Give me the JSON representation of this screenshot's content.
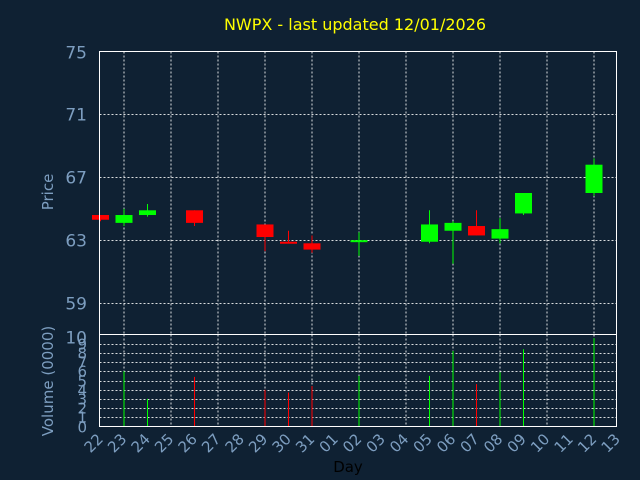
{
  "chart_data": {
    "type": "candlestick",
    "title": "NWPX - last updated 12/01/2026",
    "price_axis": {
      "label": "Price",
      "ylim": [
        57,
        75
      ],
      "ticks": [
        59,
        63,
        67,
        71,
        75
      ]
    },
    "volume_axis": {
      "label": "Volume (0000)",
      "ylim": [
        0,
        10
      ],
      "ticks": [
        0,
        1,
        2,
        3,
        4,
        5,
        6,
        7,
        8,
        9,
        10
      ]
    },
    "xlabel": "Day",
    "categories": [
      "22",
      "23",
      "24",
      "25",
      "26",
      "27",
      "28",
      "29",
      "30",
      "31",
      "01",
      "02",
      "03",
      "04",
      "05",
      "06",
      "07",
      "08",
      "09",
      "10",
      "11",
      "12",
      "13"
    ],
    "candles": [
      {
        "day": "22",
        "open": 64.6,
        "high": 64.6,
        "low": 64.2,
        "close": 64.3
      },
      {
        "day": "23",
        "open": 64.1,
        "high": 65.0,
        "low": 63.9,
        "close": 64.6
      },
      {
        "day": "24",
        "open": 64.6,
        "high": 65.3,
        "low": 64.5,
        "close": 64.9
      },
      {
        "day": "26",
        "open": 64.9,
        "high": 64.9,
        "low": 63.9,
        "close": 64.1
      },
      {
        "day": "29",
        "open": 64.0,
        "high": 64.0,
        "low": 62.3,
        "close": 63.2
      },
      {
        "day": "30",
        "open": 62.9,
        "high": 63.6,
        "low": 62.8,
        "close": 62.8
      },
      {
        "day": "31",
        "open": 62.8,
        "high": 63.3,
        "low": 62.2,
        "close": 62.4
      },
      {
        "day": "02",
        "open": 62.9,
        "high": 63.5,
        "low": 62.0,
        "close": 63.0
      },
      {
        "day": "05",
        "open": 62.9,
        "high": 64.9,
        "low": 62.8,
        "close": 64.0
      },
      {
        "day": "06",
        "open": 63.6,
        "high": 64.2,
        "low": 61.5,
        "close": 64.1
      },
      {
        "day": "07",
        "open": 63.9,
        "high": 64.9,
        "low": 63.3,
        "close": 63.3
      },
      {
        "day": "08",
        "open": 63.1,
        "high": 64.4,
        "low": 62.8,
        "close": 63.7
      },
      {
        "day": "09",
        "open": 64.7,
        "high": 66.0,
        "low": 64.6,
        "close": 66.0
      },
      {
        "day": "12",
        "open": 66.0,
        "high": 68.2,
        "low": 65.8,
        "close": 67.8
      }
    ],
    "volume": [
      {
        "day": "22",
        "value": 0.0
      },
      {
        "day": "23",
        "value": 6.0
      },
      {
        "day": "24",
        "value": 3.0
      },
      {
        "day": "26",
        "value": 5.4
      },
      {
        "day": "29",
        "value": 4.0
      },
      {
        "day": "30",
        "value": 3.7
      },
      {
        "day": "31",
        "value": 4.4
      },
      {
        "day": "02",
        "value": 5.5
      },
      {
        "day": "05",
        "value": 5.5
      },
      {
        "day": "06",
        "value": 8.2
      },
      {
        "day": "07",
        "value": 4.6
      },
      {
        "day": "08",
        "value": 5.9
      },
      {
        "day": "09",
        "value": 8.4
      },
      {
        "day": "12",
        "value": 9.6
      }
    ],
    "colors": {
      "background": "#0f2133",
      "up": "#00ff00",
      "down": "#ff0000",
      "grid": "#ffffff",
      "title": "#ffff00",
      "axis_text": "#7d9ec0"
    },
    "grid": true,
    "legend": "none"
  }
}
